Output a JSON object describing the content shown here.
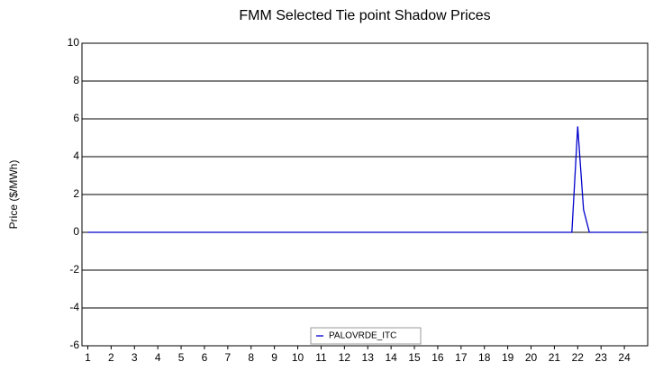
{
  "chart_data": {
    "type": "line",
    "title": "FMM Selected Tie point Shadow Prices",
    "y_label": "Price ($/MWh)",
    "x": [
      1,
      21.75,
      22,
      22.25,
      22.5,
      24.75
    ],
    "series": [
      {
        "name": "PALOVRDE_ITC",
        "color": "#0000cc",
        "values": [
          0,
          0,
          5.6,
          1.2,
          0,
          0
        ]
      }
    ],
    "xlim": [
      0.75,
      25
    ],
    "xticks": [
      1,
      2,
      3,
      4,
      5,
      6,
      7,
      8,
      9,
      10,
      11,
      12,
      13,
      14,
      15,
      16,
      17,
      18,
      19,
      20,
      21,
      22,
      23,
      24
    ],
    "ylim": [
      -6,
      10
    ],
    "yticks": [
      -6,
      -4,
      -2,
      0,
      2,
      4,
      6,
      8,
      10
    ],
    "grid": true,
    "legend": "bottom"
  }
}
